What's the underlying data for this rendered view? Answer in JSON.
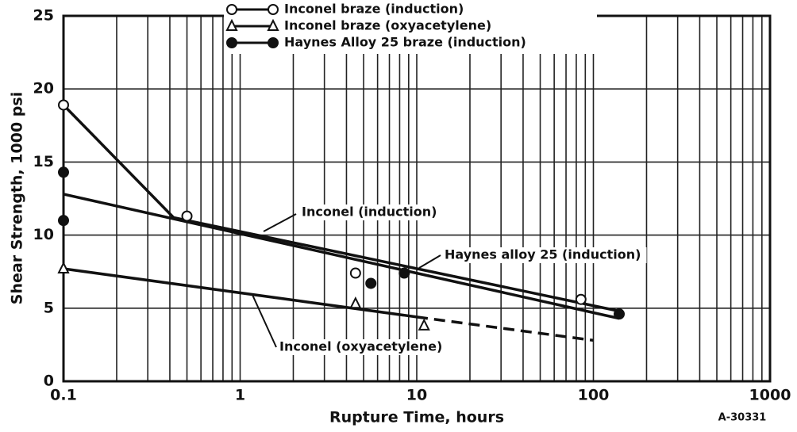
{
  "chart_data": {
    "type": "scatter",
    "x_label": "Rupture Time, hours",
    "y_label": "Shear Strength, 1000 psi",
    "code": "A-30331",
    "xscale": "log",
    "xlim": [
      0.1,
      1000
    ],
    "xticks": [
      0.1,
      1,
      10,
      100,
      1000
    ],
    "ylim": [
      0,
      25
    ],
    "yticks": [
      0,
      5,
      10,
      15,
      20,
      25
    ],
    "grid": true,
    "legend": "upper center",
    "series": [
      {
        "name": "Inconel braze (induction)",
        "marker": "open-circle",
        "color": "#111",
        "x": [
          0.1,
          0.5,
          4.5,
          85
        ],
        "values": [
          18.9,
          11.3,
          7.4,
          5.6
        ]
      },
      {
        "name": "Inconel braze (oxyacetylene)",
        "marker": "open-triangle",
        "color": "#111",
        "x": [
          0.1,
          4.5,
          11
        ],
        "values": [
          7.7,
          5.3,
          3.8
        ]
      },
      {
        "name": "Haynes Alloy 25 braze (induction)",
        "marker": "filled-circle",
        "color": "#111",
        "x": [
          0.1,
          0.1,
          5.5,
          8.5,
          140
        ],
        "values": [
          14.3,
          11.0,
          6.7,
          7.4,
          4.6
        ]
      }
    ],
    "fits": [
      {
        "label": "Inconel (induction)",
        "x": [
          0.1,
          0.42,
          140
        ],
        "values": [
          18.9,
          11.2,
          4.8
        ]
      },
      {
        "label": "Haynes alloy 25 (induction)",
        "x": [
          0.1,
          140
        ],
        "values": [
          12.8,
          4.3
        ]
      },
      {
        "label": "Inconel (oxyacetylene)",
        "x": [
          0.1,
          10
        ],
        "values": [
          7.7,
          4.4
        ]
      },
      {
        "dashed": true,
        "x": [
          10,
          100
        ],
        "values": [
          4.4,
          2.8
        ]
      }
    ]
  }
}
